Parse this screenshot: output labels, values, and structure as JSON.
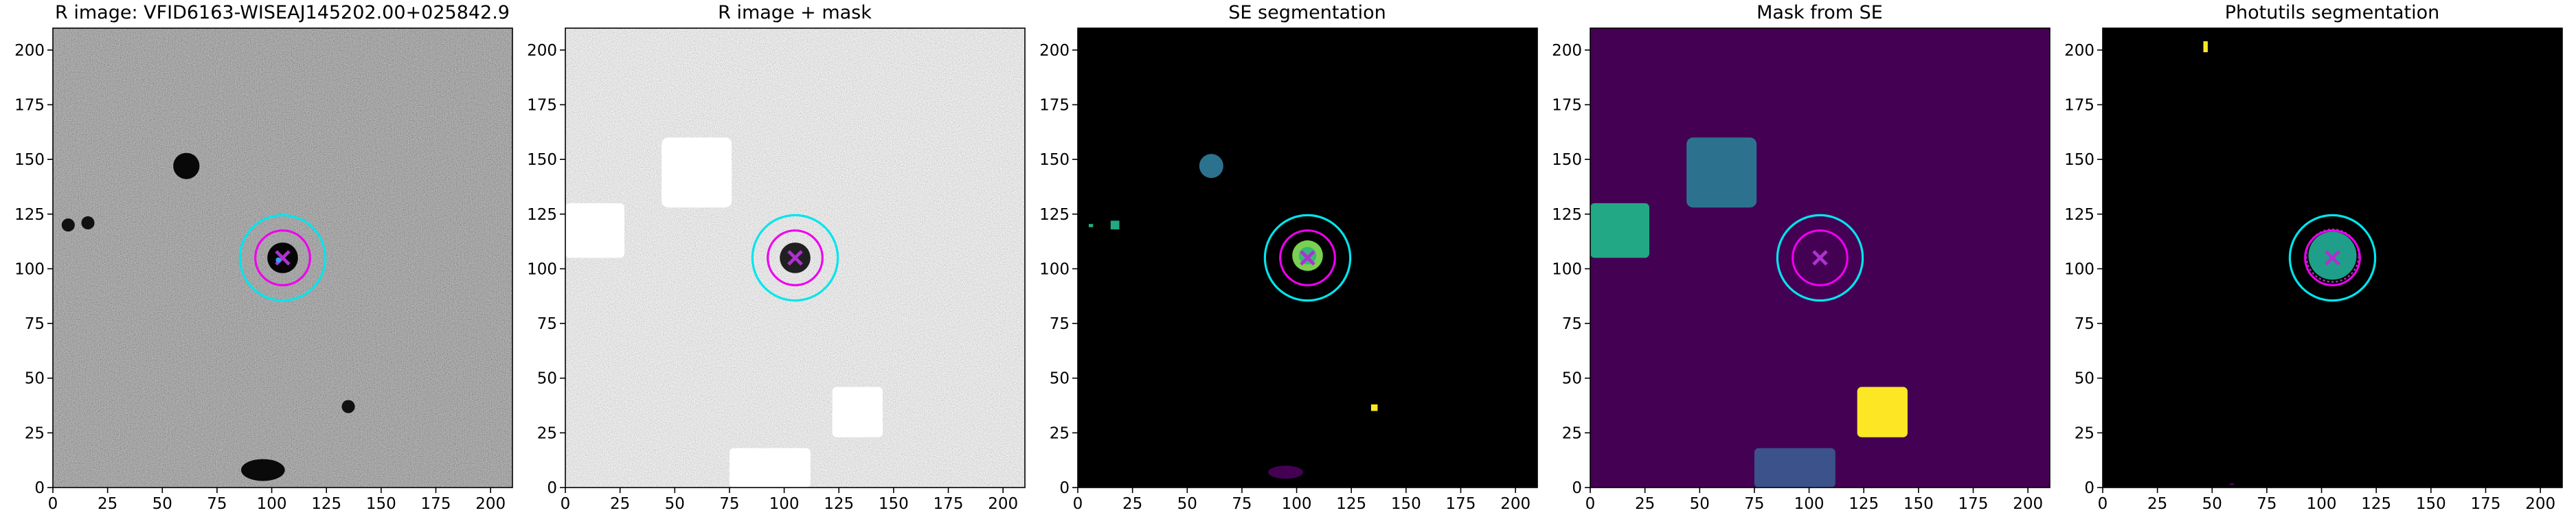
{
  "chart_data": [
    {
      "type": "image",
      "title": "R image: VFID6163-WISEAJ145202.00+025842.9",
      "xlim": [
        0,
        210
      ],
      "ylim": [
        0,
        210
      ],
      "xticks": [
        0,
        25,
        50,
        75,
        100,
        125,
        150,
        175,
        200
      ],
      "yticks": [
        0,
        25,
        50,
        75,
        100,
        125,
        150,
        175,
        200
      ]
    },
    {
      "type": "image",
      "title": "R image + mask",
      "xlim": [
        0,
        210
      ],
      "ylim": [
        0,
        210
      ],
      "xticks": [
        0,
        25,
        50,
        75,
        100,
        125,
        150,
        175,
        200
      ],
      "yticks": [
        0,
        25,
        50,
        75,
        100,
        125,
        150,
        175,
        200
      ]
    },
    {
      "type": "image",
      "title": "SE segmentation",
      "xlim": [
        0,
        210
      ],
      "ylim": [
        0,
        210
      ],
      "xticks": [
        0,
        25,
        50,
        75,
        100,
        125,
        150,
        175,
        200
      ],
      "yticks": [
        0,
        25,
        50,
        75,
        100,
        125,
        150,
        175,
        200
      ]
    },
    {
      "type": "image",
      "title": "Mask from SE",
      "xlim": [
        0,
        210
      ],
      "ylim": [
        0,
        210
      ],
      "xticks": [
        0,
        25,
        50,
        75,
        100,
        125,
        150,
        175,
        200
      ],
      "yticks": [
        0,
        25,
        50,
        75,
        100,
        125,
        150,
        175,
        200
      ]
    },
    {
      "type": "image",
      "title": "Photutils segmentation",
      "xlim": [
        0,
        210
      ],
      "ylim": [
        0,
        210
      ],
      "xticks": [
        0,
        25,
        50,
        75,
        100,
        125,
        150,
        175,
        200
      ],
      "yticks": [
        0,
        25,
        50,
        75,
        100,
        125,
        150,
        175,
        200
      ]
    }
  ]
}
